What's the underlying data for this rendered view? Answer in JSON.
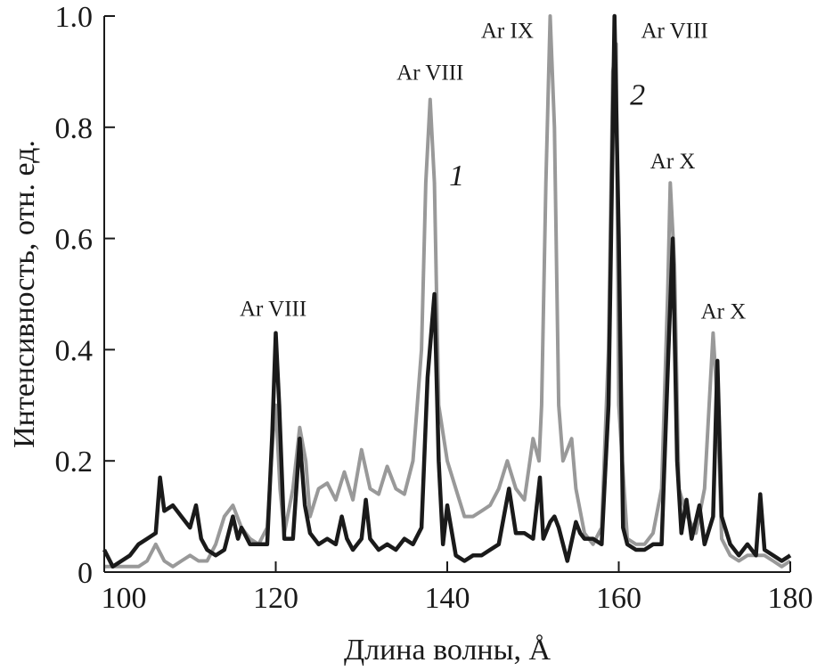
{
  "chart_data": {
    "type": "line",
    "xlabel": "Длина волны, Å",
    "ylabel": "Интенсивность, отн. ед.",
    "xlim": [
      100,
      180
    ],
    "ylim": [
      0,
      1.0
    ],
    "xticks": [
      100,
      120,
      140,
      160,
      180
    ],
    "xtick_labels": [
      "100",
      "120",
      "140",
      "160",
      "180"
    ],
    "yticks": [
      0,
      0.2,
      0.4,
      0.6,
      0.8,
      1.0
    ],
    "ytick_labels": [
      "0",
      "0.2",
      "0.4",
      "0.6",
      "0.8",
      "1.0"
    ],
    "grid": false,
    "series": [
      {
        "name": "1",
        "color": "#999999",
        "points": [
          [
            100,
            0.01
          ],
          [
            102,
            0.01
          ],
          [
            104,
            0.01
          ],
          [
            105,
            0.02
          ],
          [
            106,
            0.05
          ],
          [
            107,
            0.02
          ],
          [
            108,
            0.01
          ],
          [
            109,
            0.02
          ],
          [
            110,
            0.03
          ],
          [
            111,
            0.02
          ],
          [
            112,
            0.02
          ],
          [
            113,
            0.05
          ],
          [
            114,
            0.1
          ],
          [
            115,
            0.12
          ],
          [
            116,
            0.08
          ],
          [
            117,
            0.06
          ],
          [
            118,
            0.05
          ],
          [
            119,
            0.08
          ],
          [
            119.7,
            0.25
          ],
          [
            120,
            0.3
          ],
          [
            120.5,
            0.15
          ],
          [
            121,
            0.07
          ],
          [
            122,
            0.15
          ],
          [
            122.8,
            0.26
          ],
          [
            123.5,
            0.2
          ],
          [
            124,
            0.1
          ],
          [
            125,
            0.15
          ],
          [
            126,
            0.16
          ],
          [
            127,
            0.13
          ],
          [
            128,
            0.18
          ],
          [
            129,
            0.13
          ],
          [
            130,
            0.22
          ],
          [
            131,
            0.15
          ],
          [
            132,
            0.14
          ],
          [
            133,
            0.19
          ],
          [
            134,
            0.15
          ],
          [
            135,
            0.14
          ],
          [
            136,
            0.2
          ],
          [
            137,
            0.4
          ],
          [
            137.5,
            0.7
          ],
          [
            138,
            0.85
          ],
          [
            138.5,
            0.7
          ],
          [
            139,
            0.3
          ],
          [
            140,
            0.2
          ],
          [
            141,
            0.15
          ],
          [
            142,
            0.1
          ],
          [
            143,
            0.1
          ],
          [
            144,
            0.11
          ],
          [
            145,
            0.12
          ],
          [
            146,
            0.15
          ],
          [
            147,
            0.2
          ],
          [
            148,
            0.15
          ],
          [
            149,
            0.13
          ],
          [
            150,
            0.24
          ],
          [
            150.7,
            0.2
          ],
          [
            151,
            0.3
          ],
          [
            151.5,
            0.7
          ],
          [
            152,
            1.0
          ],
          [
            152.5,
            0.8
          ],
          [
            153,
            0.3
          ],
          [
            153.5,
            0.2
          ],
          [
            154,
            0.22
          ],
          [
            154.5,
            0.24
          ],
          [
            155,
            0.15
          ],
          [
            156,
            0.07
          ],
          [
            157,
            0.05
          ],
          [
            158,
            0.08
          ],
          [
            158.8,
            0.4
          ],
          [
            159.3,
            0.9
          ],
          [
            159.7,
            0.95
          ],
          [
            160,
            0.3
          ],
          [
            161,
            0.06
          ],
          [
            162,
            0.05
          ],
          [
            163,
            0.05
          ],
          [
            164,
            0.07
          ],
          [
            165,
            0.15
          ],
          [
            165.7,
            0.5
          ],
          [
            166,
            0.7
          ],
          [
            166.5,
            0.55
          ],
          [
            167,
            0.15
          ],
          [
            168,
            0.1
          ],
          [
            169,
            0.07
          ],
          [
            170,
            0.15
          ],
          [
            171,
            0.43
          ],
          [
            171.5,
            0.3
          ],
          [
            172,
            0.06
          ],
          [
            173,
            0.03
          ],
          [
            174,
            0.02
          ],
          [
            175,
            0.03
          ],
          [
            176,
            0.03
          ],
          [
            177,
            0.03
          ],
          [
            178,
            0.02
          ],
          [
            179,
            0.01
          ],
          [
            180,
            0.02
          ]
        ]
      },
      {
        "name": "2",
        "color": "#1a1a1a",
        "points": [
          [
            100,
            0.04
          ],
          [
            101,
            0.01
          ],
          [
            102,
            0.02
          ],
          [
            103,
            0.03
          ],
          [
            104,
            0.05
          ],
          [
            105,
            0.06
          ],
          [
            106,
            0.07
          ],
          [
            106.5,
            0.17
          ],
          [
            107,
            0.11
          ],
          [
            108,
            0.12
          ],
          [
            109,
            0.1
          ],
          [
            110,
            0.08
          ],
          [
            110.7,
            0.12
          ],
          [
            111.3,
            0.06
          ],
          [
            112,
            0.04
          ],
          [
            113,
            0.03
          ],
          [
            114,
            0.04
          ],
          [
            115,
            0.1
          ],
          [
            115.6,
            0.06
          ],
          [
            116,
            0.08
          ],
          [
            117,
            0.05
          ],
          [
            118,
            0.05
          ],
          [
            119,
            0.05
          ],
          [
            119.6,
            0.25
          ],
          [
            120,
            0.43
          ],
          [
            120.4,
            0.3
          ],
          [
            121,
            0.06
          ],
          [
            122,
            0.06
          ],
          [
            122.8,
            0.24
          ],
          [
            123.4,
            0.12
          ],
          [
            124,
            0.07
          ],
          [
            125,
            0.05
          ],
          [
            126,
            0.06
          ],
          [
            127,
            0.05
          ],
          [
            127.7,
            0.1
          ],
          [
            128.3,
            0.06
          ],
          [
            129,
            0.04
          ],
          [
            130,
            0.06
          ],
          [
            130.5,
            0.13
          ],
          [
            131,
            0.06
          ],
          [
            132,
            0.04
          ],
          [
            133,
            0.05
          ],
          [
            134,
            0.04
          ],
          [
            135,
            0.06
          ],
          [
            136,
            0.05
          ],
          [
            137,
            0.08
          ],
          [
            137.7,
            0.35
          ],
          [
            138.5,
            0.5
          ],
          [
            139,
            0.2
          ],
          [
            139.5,
            0.05
          ],
          [
            140,
            0.12
          ],
          [
            141,
            0.03
          ],
          [
            142,
            0.02
          ],
          [
            143,
            0.03
          ],
          [
            144,
            0.03
          ],
          [
            145,
            0.04
          ],
          [
            146,
            0.05
          ],
          [
            147.2,
            0.15
          ],
          [
            148,
            0.07
          ],
          [
            149,
            0.07
          ],
          [
            150,
            0.06
          ],
          [
            150.8,
            0.17
          ],
          [
            151.2,
            0.06
          ],
          [
            152,
            0.09
          ],
          [
            152.5,
            0.1
          ],
          [
            153,
            0.08
          ],
          [
            154,
            0.02
          ],
          [
            155,
            0.09
          ],
          [
            155.5,
            0.07
          ],
          [
            156,
            0.06
          ],
          [
            157,
            0.06
          ],
          [
            158,
            0.05
          ],
          [
            158.8,
            0.3
          ],
          [
            159.5,
            1.0
          ],
          [
            160,
            0.6
          ],
          [
            160.5,
            0.08
          ],
          [
            161,
            0.05
          ],
          [
            162,
            0.04
          ],
          [
            163,
            0.04
          ],
          [
            164,
            0.05
          ],
          [
            165,
            0.05
          ],
          [
            165.8,
            0.4
          ],
          [
            166.3,
            0.6
          ],
          [
            166.8,
            0.2
          ],
          [
            167.3,
            0.07
          ],
          [
            167.9,
            0.13
          ],
          [
            168.5,
            0.06
          ],
          [
            169.4,
            0.12
          ],
          [
            170,
            0.05
          ],
          [
            171,
            0.1
          ],
          [
            171.5,
            0.38
          ],
          [
            172,
            0.1
          ],
          [
            173,
            0.05
          ],
          [
            174,
            0.03
          ],
          [
            175,
            0.05
          ],
          [
            176,
            0.03
          ],
          [
            176.5,
            0.14
          ],
          [
            177,
            0.04
          ],
          [
            178,
            0.03
          ],
          [
            179,
            0.02
          ],
          [
            180,
            0.03
          ]
        ]
      }
    ],
    "annotations": [
      {
        "text": "Ar VIII",
        "x": 119.7,
        "y": 0.475
      },
      {
        "text": "Ar VIII",
        "x": 138,
        "y": 0.9
      },
      {
        "text": "Ar IX",
        "x": 147,
        "y": 0.975
      },
      {
        "text": "Ar VIII",
        "x": 166.5,
        "y": 0.975
      },
      {
        "text": "Ar X",
        "x": 166.3,
        "y": 0.74
      },
      {
        "text": "Ar X",
        "x": 172.2,
        "y": 0.47
      }
    ],
    "curve_labels": [
      {
        "text": "1",
        "x": 141.1,
        "y": 0.715
      },
      {
        "text": "2",
        "x": 162.2,
        "y": 0.86
      }
    ]
  }
}
